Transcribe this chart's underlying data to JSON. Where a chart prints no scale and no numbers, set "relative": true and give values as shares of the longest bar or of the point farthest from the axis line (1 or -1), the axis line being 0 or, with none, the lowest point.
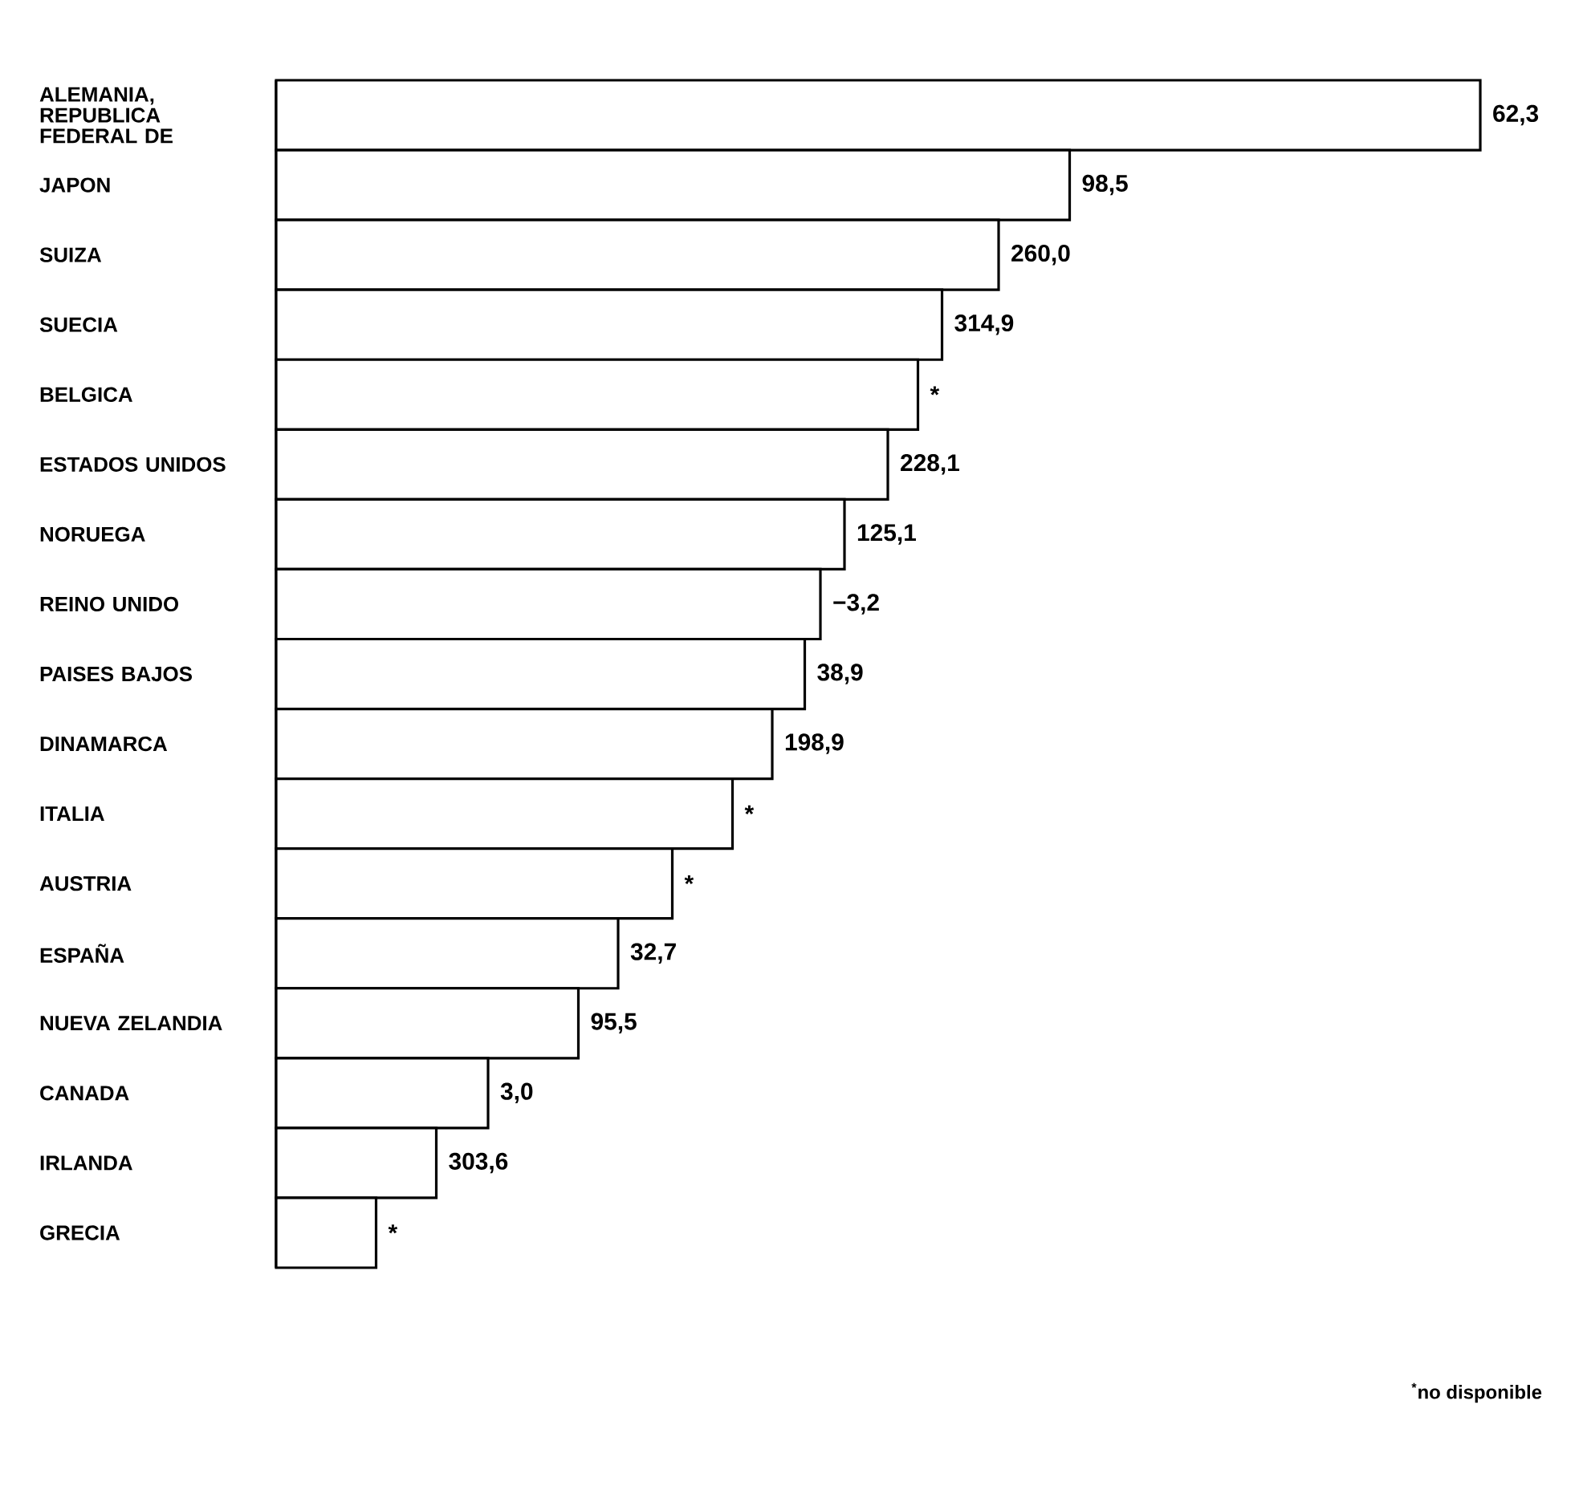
{
  "chart_data": {
    "type": "bar",
    "orientation": "horizontal",
    "relative": true,
    "categories": [
      "ALEMANIA, REPUBLICA FEDERAL DE",
      "JAPON",
      "SUIZA",
      "SUECIA",
      "BELGICA",
      "ESTADOS UNIDOS",
      "NORUEGA",
      "REINO UNIDO",
      "PAISES BAJOS",
      "DINAMARCA",
      "ITALIA",
      "AUSTRIA",
      "ESPAÑA",
      "NUEVA ZELANDIA",
      "CANADA",
      "IRLANDA",
      "GRECIA"
    ],
    "values": [
      1,
      0.659,
      0.6,
      0.553,
      0.533,
      0.508,
      0.472,
      0.452,
      0.439,
      0.412,
      0.379,
      0.329,
      0.284,
      0.251,
      0.176,
      0.133,
      0.083
    ],
    "color": "#ffffff",
    "annotations": [
      {
        "text": "62,3",
        "x": 1,
        "y": "ALEMANIA, REPUBLICA FEDERAL DE"
      },
      {
        "text": "98,5",
        "x": 0.659,
        "y": "JAPON"
      },
      {
        "text": "260,0",
        "x": 0.6,
        "y": "SUIZA"
      },
      {
        "text": "314,9",
        "x": 0.553,
        "y": "SUECIA"
      },
      {
        "text": "*",
        "x": 0.533,
        "y": "BELGICA"
      },
      {
        "text": "228,1",
        "x": 0.508,
        "y": "ESTADOS UNIDOS"
      },
      {
        "text": "125,1",
        "x": 0.472,
        "y": "NORUEGA"
      },
      {
        "text": "−3,2",
        "x": 0.452,
        "y": "REINO UNIDO"
      },
      {
        "text": "38,9",
        "x": 0.439,
        "y": "PAISES BAJOS"
      },
      {
        "text": "198,9",
        "x": 0.412,
        "y": "DINAMARCA"
      },
      {
        "text": "*",
        "x": 0.379,
        "y": "ITALIA"
      },
      {
        "text": "*",
        "x": 0.329,
        "y": "AUSTRIA"
      },
      {
        "text": "32,7",
        "x": 0.284,
        "y": "ESPAÑA"
      },
      {
        "text": "95,5",
        "x": 0.251,
        "y": "NUEVA ZELANDIA"
      },
      {
        "text": "3,0",
        "x": 0.176,
        "y": "CANADA"
      },
      {
        "text": "303,6",
        "x": 0.133,
        "y": "IRLANDA"
      },
      {
        "text": "*",
        "x": 0.083,
        "y": "GRECIA"
      },
      "$^{*}$no disponible"
    ]
  }
}
